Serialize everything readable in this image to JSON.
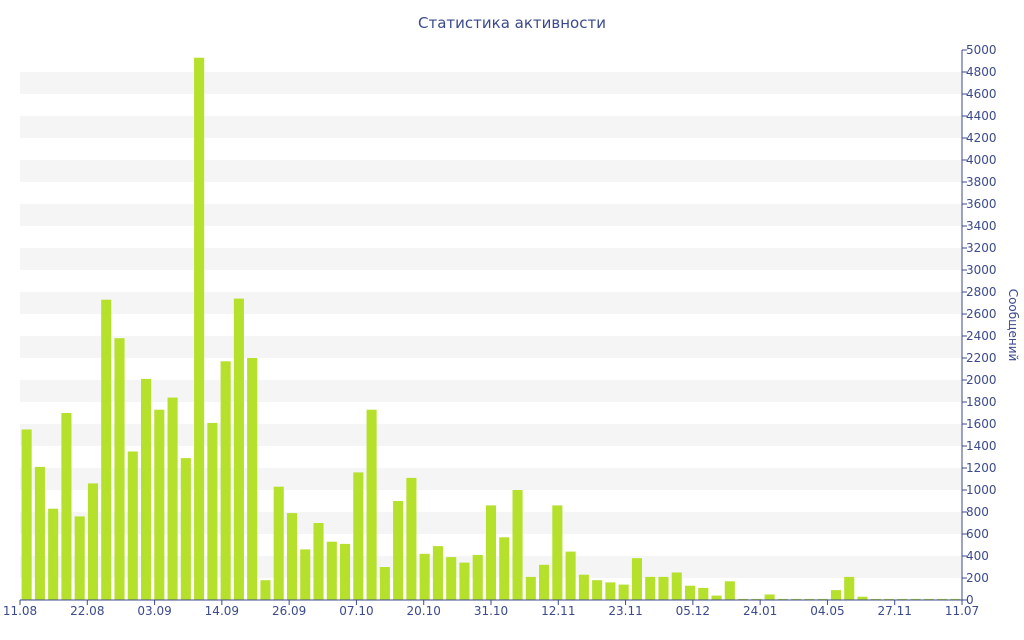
{
  "chart_data": {
    "type": "bar",
    "title": "Статистика активности",
    "ylabel": "Сообщений",
    "xlabel": "",
    "ylim": [
      0,
      5000
    ],
    "y_ticks": [
      0,
      200,
      400,
      600,
      800,
      1000,
      1200,
      1400,
      1600,
      1800,
      2000,
      2200,
      2400,
      2600,
      2800,
      3000,
      3200,
      3400,
      3600,
      3800,
      4000,
      4200,
      4400,
      4600,
      4800,
      5000
    ],
    "x_tick_labels": [
      "11.08",
      "22.08",
      "03.09",
      "14.09",
      "26.09",
      "07.10",
      "20.10",
      "31.10",
      "12.11",
      "23.11",
      "05.12",
      "24.01",
      "04.05",
      "27.11",
      "11.07"
    ],
    "grid": "horizontal bands",
    "bar_color": "#b5e02c",
    "axis_color": "#3b4a8c",
    "values": [
      1550,
      1210,
      830,
      1700,
      760,
      1060,
      2730,
      2380,
      1350,
      2010,
      1730,
      1840,
      1290,
      4930,
      1610,
      2170,
      2740,
      2200,
      180,
      1030,
      790,
      460,
      700,
      530,
      510,
      1160,
      1730,
      300,
      900,
      1110,
      420,
      490,
      390,
      340,
      410,
      860,
      570,
      1000,
      210,
      320,
      860,
      440,
      230,
      180,
      160,
      140,
      380,
      210,
      210,
      250,
      130,
      110,
      40,
      170,
      10,
      10,
      50,
      10,
      10,
      10,
      10,
      90,
      210,
      30,
      10,
      10,
      10,
      10,
      10,
      10,
      10
    ]
  }
}
